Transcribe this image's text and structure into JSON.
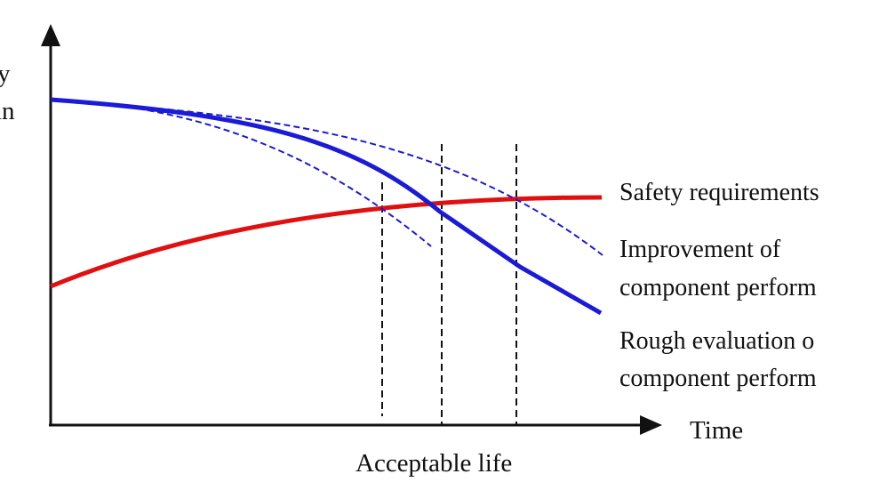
{
  "y_axis_label": {
    "line1": "y",
    "line2": "in"
  },
  "x_axis_label": "Time",
  "bottom_label": "Acceptable life",
  "curve_labels": {
    "safety": "Safety requirements",
    "improvement_line1": "Improvement of",
    "improvement_line2": "component perform",
    "rough_line1": "Rough evaluation o",
    "rough_line2": "component perform"
  },
  "colors": {
    "reliability_curve": "#1a1ad8",
    "safety_curve": "#e01010",
    "axes": "#111111"
  }
}
